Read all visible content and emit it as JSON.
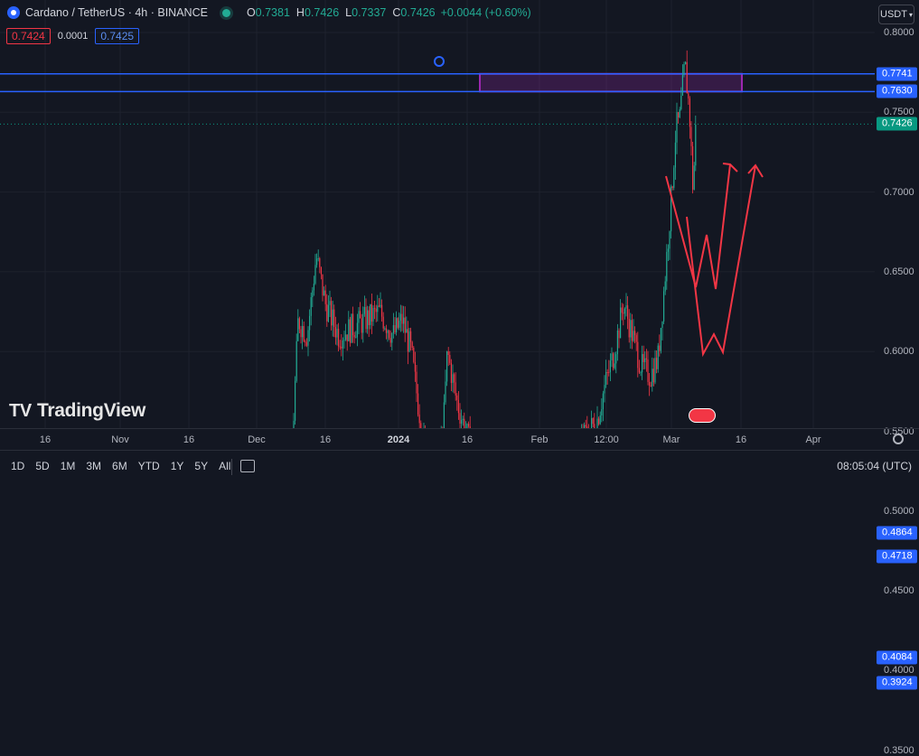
{
  "legend": {
    "title": "Cardano / TetherUS · 4h · BINANCE",
    "o_label": "O",
    "o": "0.7381",
    "h_label": "H",
    "h": "0.7426",
    "l_label": "L",
    "l": "0.7337",
    "c_label": "C",
    "c": "0.7426",
    "change": "+0.0044 (+0.60%)"
  },
  "bid": "0.7424",
  "spread": "0.0001",
  "ask": "0.7425",
  "currency": "USDT",
  "price_ticks": [
    "0.8000",
    "0.7500",
    "0.7000",
    "0.6500",
    "0.6000",
    "0.5500",
    "0.5000",
    "0.4500",
    "0.4000",
    "0.3500"
  ],
  "price_labels": [
    {
      "text": "0.7741",
      "color": "blue"
    },
    {
      "text": "0.7630",
      "color": "blue"
    },
    {
      "text": "0.7426",
      "color": "green"
    },
    {
      "text": "0.4864",
      "color": "blue"
    },
    {
      "text": "0.4718",
      "color": "blue"
    },
    {
      "text": "0.4084",
      "color": "blue"
    },
    {
      "text": "0.3924",
      "color": "blue"
    }
  ],
  "time_labels": [
    {
      "text": "16",
      "bold": false
    },
    {
      "text": "Nov",
      "bold": false
    },
    {
      "text": "16",
      "bold": false
    },
    {
      "text": "Dec",
      "bold": false
    },
    {
      "text": "16",
      "bold": false
    },
    {
      "text": "2024",
      "bold": true
    },
    {
      "text": "16",
      "bold": false
    },
    {
      "text": "Feb",
      "bold": false
    },
    {
      "text": "12:00",
      "bold": false
    },
    {
      "text": "Mar",
      "bold": false
    },
    {
      "text": "16",
      "bold": false
    },
    {
      "text": "Apr",
      "bold": false
    }
  ],
  "ranges": [
    "1D",
    "5D",
    "1M",
    "3M",
    "6M",
    "YTD",
    "1Y",
    "5Y",
    "All"
  ],
  "clock": "08:05:04 (UTC)",
  "logo_text": "TradingView",
  "colors": {
    "up": "#22ab94",
    "down": "#f23645",
    "line": "#2962ff",
    "zone": "#9c27b0",
    "arrow": "#f23645"
  }
}
